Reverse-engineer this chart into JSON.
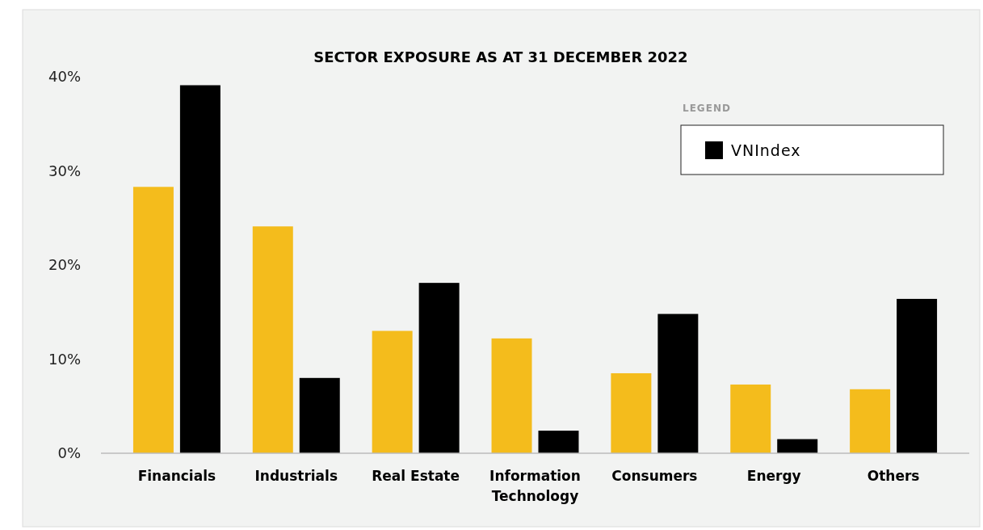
{
  "chart_data": {
    "type": "bar",
    "title": "SECTOR EXPOSURE AS AT 31 DECEMBER 2022",
    "categories": [
      "Financials",
      "Industrials",
      "Real Estate",
      "Information Technology",
      "Consumers",
      "Energy",
      "Others"
    ],
    "series": [
      {
        "color": "#f4bc1c",
        "values": [
          28.3,
          24.1,
          13.0,
          12.2,
          8.5,
          7.3,
          6.8
        ]
      },
      {
        "name": "VNIndex",
        "color": "#000000",
        "values": [
          39.1,
          8.0,
          18.1,
          2.4,
          14.8,
          1.5,
          16.4
        ]
      }
    ],
    "ylim": [
      0,
      40
    ],
    "yticks": [
      {
        "value": 0,
        "label": "0%"
      },
      {
        "value": 10,
        "label": "10%"
      },
      {
        "value": 20,
        "label": "20%"
      },
      {
        "value": 30,
        "label": "30%"
      },
      {
        "value": 40,
        "label": "40%"
      }
    ],
    "grid": false,
    "legend": "top right",
    "legend_title": "LEGEND"
  }
}
